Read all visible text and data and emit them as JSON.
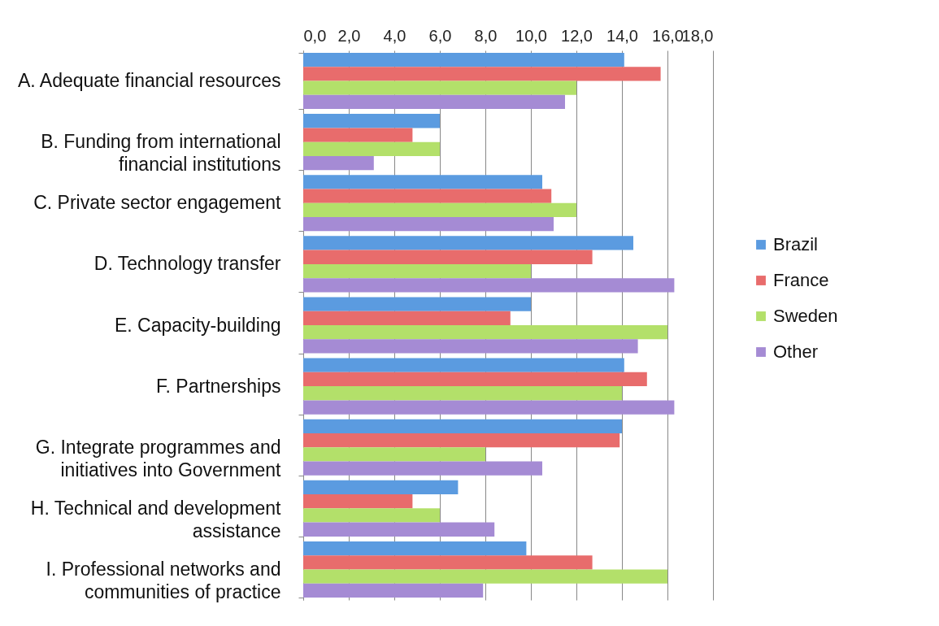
{
  "chart_data": {
    "type": "bar",
    "orientation": "horizontal",
    "categories": [
      "A. Adequate financial resources",
      "B. Funding from international financial institutions",
      "C.  Private sector engagement",
      "D. Technology transfer",
      "E. Capacity-building",
      "F. Partnerships",
      "G. Integrate programmes and initiatives into Government",
      "H. Technical and development assistance",
      "I. Professional networks and communities of practice"
    ],
    "series": [
      {
        "name": "Brazil",
        "color": "#5b9be0",
        "values": [
          14.1,
          6.0,
          10.5,
          14.5,
          10.0,
          14.1,
          14.0,
          6.8,
          9.8
        ]
      },
      {
        "name": "France",
        "color": "#e86c6c",
        "values": [
          15.7,
          4.8,
          10.9,
          12.7,
          9.1,
          15.1,
          13.9,
          4.8,
          12.7
        ]
      },
      {
        "name": "Sweden",
        "color": "#b3e06a",
        "values": [
          12.0,
          6.0,
          12.0,
          10.0,
          16.0,
          14.0,
          8.0,
          6.0,
          16.0
        ]
      },
      {
        "name": "Other",
        "color": "#a58bd4",
        "values": [
          11.5,
          3.1,
          11.0,
          16.3,
          14.7,
          16.3,
          10.5,
          8.4,
          7.9
        ]
      }
    ],
    "xlim": [
      0,
      18
    ],
    "xticks": [
      {
        "value": 0,
        "label": "0,0"
      },
      {
        "value": 2,
        "label": "2,0"
      },
      {
        "value": 4,
        "label": "4,0"
      },
      {
        "value": 6,
        "label": "6,0"
      },
      {
        "value": 8,
        "label": "8,0"
      },
      {
        "value": 10,
        "label": "10,0"
      },
      {
        "value": 12,
        "label": "12,0"
      },
      {
        "value": 14,
        "label": "14,0"
      },
      {
        "value": 16,
        "label": "16,0"
      },
      {
        "value": 18,
        "label": "18,0"
      }
    ],
    "grid": "x",
    "legend": "right"
  }
}
